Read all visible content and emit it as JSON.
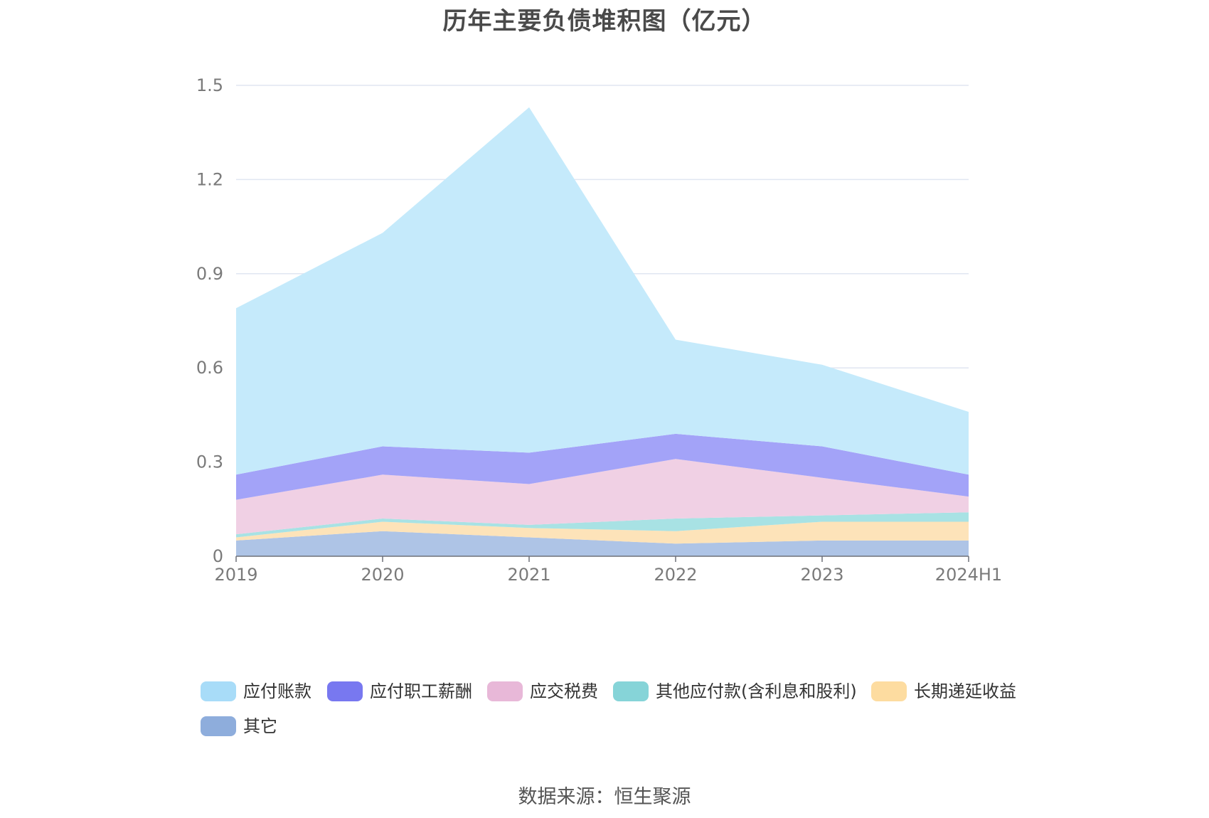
{
  "chart_data": {
    "type": "area",
    "stacked": true,
    "title": "历年主要负债堆积图（亿元）",
    "x": [
      "2019",
      "2020",
      "2021",
      "2022",
      "2023",
      "2024H1"
    ],
    "y_ticks": [
      "0",
      "0.3",
      "0.6",
      "0.9",
      "1.2",
      "1.5"
    ],
    "ylim": [
      0,
      1.5
    ],
    "grid": true,
    "legend_position": "bottom",
    "series": [
      {
        "name": "其它",
        "color": "#aec4e6",
        "legend_color": "#8eaddc",
        "values": [
          0.05,
          0.08,
          0.06,
          0.04,
          0.05,
          0.05
        ]
      },
      {
        "name": "长期递延收益",
        "color": "#fde3b9",
        "legend_color": "#fddca0",
        "values": [
          0.01,
          0.03,
          0.03,
          0.04,
          0.06,
          0.06
        ]
      },
      {
        "name": "其他应付款(含利息和股利)",
        "color": "#a8e2e4",
        "legend_color": "#86d4d8",
        "values": [
          0.01,
          0.01,
          0.01,
          0.04,
          0.02,
          0.03
        ]
      },
      {
        "name": "应交税费",
        "color": "#f0d0e4",
        "legend_color": "#e8b8d8",
        "values": [
          0.11,
          0.14,
          0.13,
          0.19,
          0.12,
          0.05
        ]
      },
      {
        "name": "应付职工薪酬",
        "color": "#a3a3f8",
        "legend_color": "#7878f0",
        "values": [
          0.08,
          0.09,
          0.1,
          0.08,
          0.1,
          0.07
        ]
      },
      {
        "name": "应付账款",
        "color": "#c5eafb",
        "legend_color": "#a8dcf8",
        "values": [
          0.53,
          0.68,
          1.1,
          0.3,
          0.26,
          0.2
        ]
      }
    ],
    "legend_order": [
      "应付账款",
      "应付职工薪酬",
      "应交税费",
      "其他应付款(含利息和股利)",
      "长期递延收益",
      "其它"
    ]
  },
  "source_note": "数据来源：恒生聚源"
}
